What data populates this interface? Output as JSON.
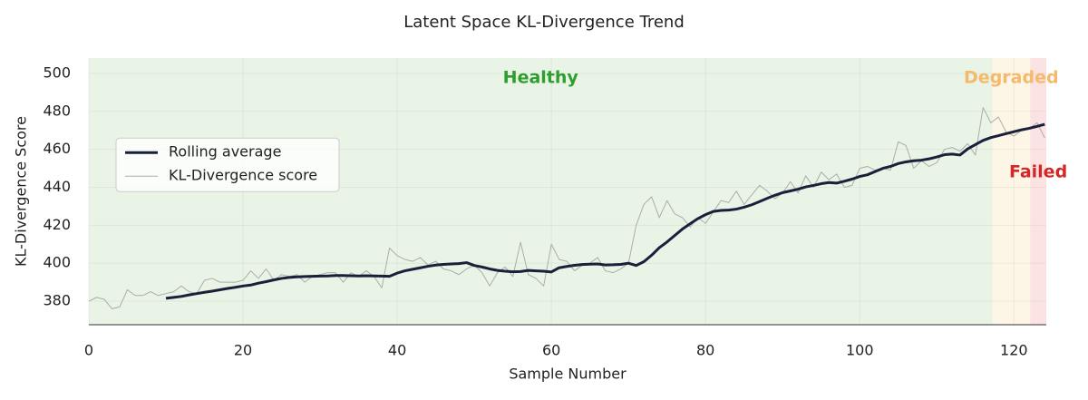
{
  "chart_data": {
    "type": "line",
    "title": "Latent Space KL-Divergence Trend",
    "x_label": "Sample Number",
    "y_label": "KL-Divergence Score",
    "x": [
      0,
      1,
      2,
      3,
      4,
      5,
      6,
      7,
      8,
      9,
      10,
      11,
      12,
      13,
      14,
      15,
      16,
      17,
      18,
      19,
      20,
      21,
      22,
      23,
      24,
      25,
      26,
      27,
      28,
      29,
      30,
      31,
      32,
      33,
      34,
      35,
      36,
      37,
      38,
      39,
      40,
      41,
      42,
      43,
      44,
      45,
      46,
      47,
      48,
      49,
      50,
      51,
      52,
      53,
      54,
      55,
      56,
      57,
      58,
      59,
      60,
      61,
      62,
      63,
      64,
      65,
      66,
      67,
      68,
      69,
      70,
      71,
      72,
      73,
      74,
      75,
      76,
      77,
      78,
      79,
      80,
      81,
      82,
      83,
      84,
      85,
      86,
      87,
      88,
      89,
      90,
      91,
      92,
      93,
      94,
      95,
      96,
      97,
      98,
      99,
      100,
      101,
      102,
      103,
      104,
      105,
      106,
      107,
      108,
      109,
      110,
      111,
      112,
      113,
      114,
      115,
      116,
      117,
      118,
      119,
      120,
      121,
      122,
      123,
      124
    ],
    "series": [
      {
        "name": "Rolling average",
        "color": "#1a1f3a",
        "width": 3,
        "values": [
          null,
          null,
          null,
          null,
          null,
          null,
          null,
          null,
          null,
          null,
          381.5,
          382,
          382.5,
          383.3,
          384,
          384.7,
          385.3,
          386,
          386.7,
          387.3,
          388,
          388.5,
          389.5,
          390.3,
          391.2,
          392,
          392.5,
          392.8,
          393,
          393.1,
          393.2,
          393.3,
          393.5,
          393.5,
          393.4,
          393.3,
          393.4,
          393.3,
          393.2,
          393.1,
          394.8,
          396,
          396.8,
          397.6,
          398.4,
          399,
          399.4,
          399.6,
          399.8,
          400.3,
          398.8,
          398,
          397,
          396.2,
          395.8,
          395.5,
          395.6,
          396.2,
          396,
          395.8,
          395.4,
          397.6,
          398.3,
          398.9,
          399.3,
          399.5,
          399.6,
          399.1,
          399.2,
          399.4,
          400,
          398.8,
          400.8,
          404.2,
          408.2,
          411.2,
          414.6,
          418,
          420.8,
          423.5,
          425.6,
          427.3,
          427.8,
          428,
          428.5,
          429.5,
          430.8,
          432.5,
          434.2,
          435.8,
          437.2,
          438.1,
          439,
          440.2,
          441,
          441.9,
          442.5,
          442.2,
          443.2,
          444.3,
          445.7,
          446.6,
          448.3,
          450,
          451,
          452.5,
          453.4,
          454,
          454.3,
          455,
          456,
          457.2,
          457.5,
          457,
          460.2,
          462.5,
          464.7,
          466.2,
          467.2,
          468.3,
          469.3,
          470.3,
          471.1,
          472.1,
          473.2
        ]
      },
      {
        "name": "KL-Divergence score",
        "color": "#a9ada9",
        "width": 1,
        "values": [
          380,
          382,
          381,
          376,
          377,
          386,
          383,
          383,
          385,
          383,
          384,
          385,
          388,
          385,
          384,
          391,
          392,
          390,
          390,
          390,
          391,
          396,
          392,
          397,
          391,
          394,
          393,
          394,
          390,
          393,
          394,
          395,
          395,
          390,
          395,
          393,
          396,
          393,
          387,
          408,
          404,
          402,
          401,
          403,
          399,
          401,
          397,
          396,
          394,
          397,
          399,
          395,
          388,
          395,
          398,
          393,
          411,
          394,
          392,
          388,
          410,
          402,
          401,
          396,
          399,
          400,
          403,
          396,
          395,
          397,
          400,
          420,
          431,
          435,
          424,
          433,
          426,
          424,
          419,
          424,
          421,
          427,
          433,
          432,
          438,
          431,
          436,
          441,
          438,
          434,
          437,
          443,
          437,
          446,
          440,
          448,
          444,
          447,
          440,
          441,
          450,
          451,
          449,
          450,
          449,
          464,
          462,
          450,
          454,
          451,
          453,
          460,
          461,
          459,
          463,
          457,
          482,
          474,
          477,
          469,
          467,
          470,
          471,
          474,
          466
        ]
      }
    ],
    "regions": [
      {
        "label": "Healthy",
        "range": [
          0,
          117.2
        ],
        "color": "#e9f4e6",
        "label_color": "#2e9e2e"
      },
      {
        "label": "Degraded",
        "range": [
          117.2,
          122.1
        ],
        "color": "#fdf5e6",
        "label_color": "#f5b96c"
      },
      {
        "label": "Failed",
        "range": [
          122.1,
          124.2
        ],
        "color": "#fbe3e3",
        "label_color": "#d62728"
      }
    ],
    "xlim": [
      0,
      124.2
    ],
    "xticks": [
      0,
      20,
      40,
      60,
      80,
      100,
      120
    ],
    "ylim": [
      367.6,
      508.1
    ],
    "yticks": [
      380,
      400,
      420,
      440,
      460,
      480,
      500
    ],
    "grid": true,
    "legend": "center left"
  }
}
